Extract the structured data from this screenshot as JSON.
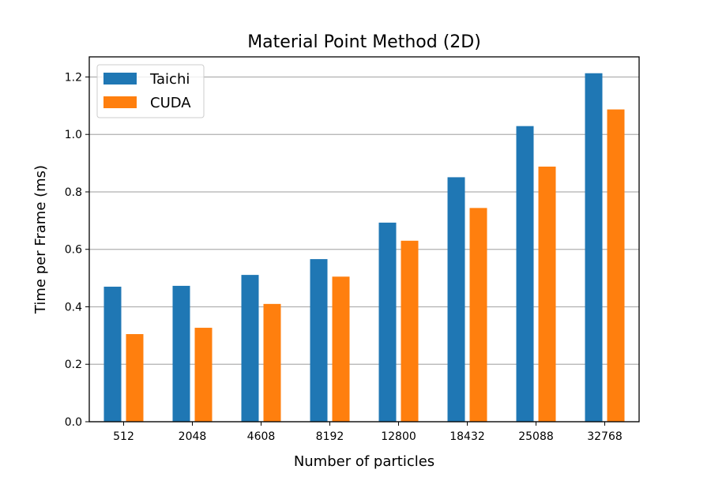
{
  "chart_data": {
    "type": "bar",
    "title": "Material Point Method (2D)",
    "xlabel": "Number of particles",
    "ylabel": "Time per Frame (ms)",
    "categories": [
      "512",
      "2048",
      "4608",
      "8192",
      "12800",
      "18432",
      "25088",
      "32768"
    ],
    "series": [
      {
        "name": "Taichi",
        "color": "#1f77b4",
        "values": [
          0.47,
          0.473,
          0.511,
          0.566,
          0.693,
          0.851,
          1.029,
          1.213
        ]
      },
      {
        "name": "CUDA",
        "color": "#ff7f0e",
        "values": [
          0.305,
          0.327,
          0.41,
          0.505,
          0.63,
          0.744,
          0.888,
          1.087
        ]
      }
    ],
    "ylim": [
      0,
      1.27
    ],
    "yticks": [
      0.0,
      0.2,
      0.4,
      0.6,
      0.8,
      1.0,
      1.2
    ],
    "ytick_labels": [
      "0.0",
      "0.2",
      "0.4",
      "0.6",
      "0.8",
      "1.0",
      "1.2"
    ],
    "grid": {
      "y": true,
      "x": false
    },
    "legend_placement": "top-left"
  }
}
